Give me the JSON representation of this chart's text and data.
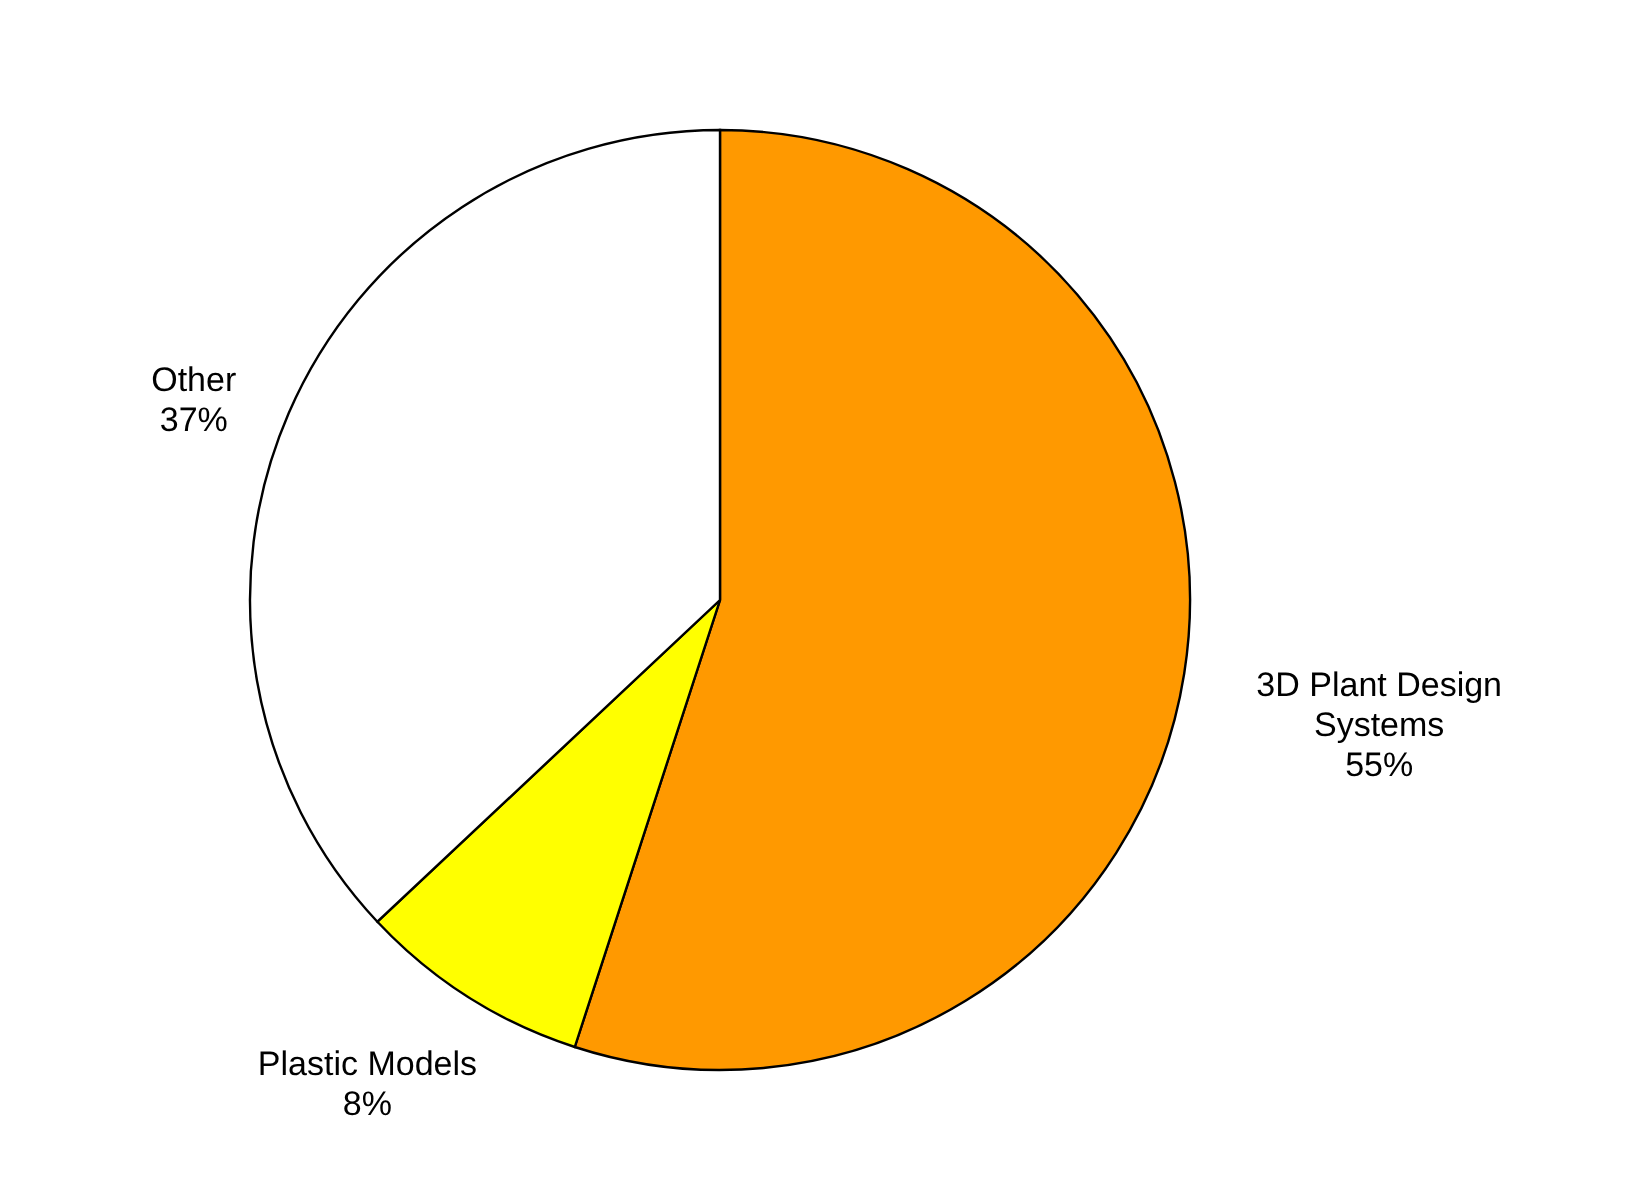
{
  "chart_data": {
    "type": "pie",
    "categories": [
      "3D Plant Design\nSystems",
      "Plastic Models",
      "Other"
    ],
    "values": [
      55,
      8,
      37
    ],
    "colors": [
      "#ff9900",
      "#ffff00",
      "#ffffff"
    ],
    "value_labels": [
      "55%",
      "8%",
      "37%"
    ]
  }
}
